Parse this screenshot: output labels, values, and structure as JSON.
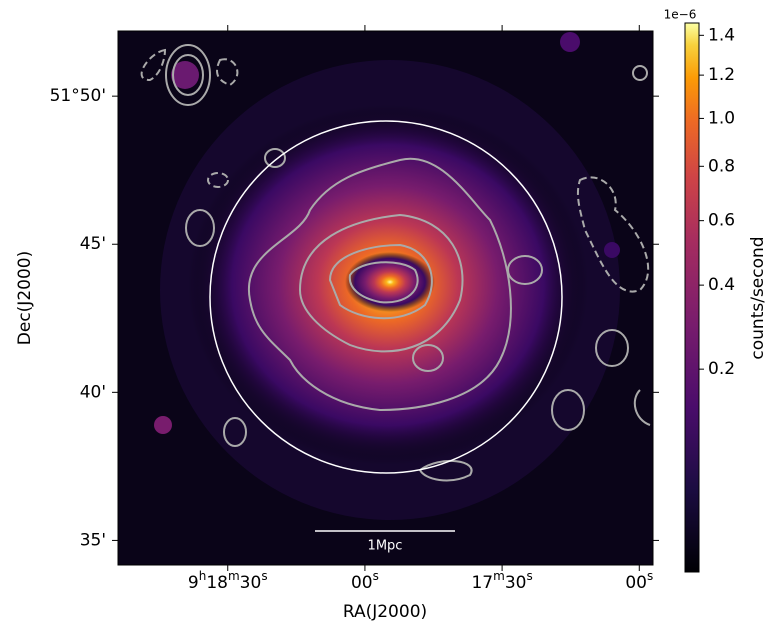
{
  "chart_data": {
    "type": "image",
    "xlabel": "RA(J2000)",
    "ylabel": "Dec(J2000)",
    "xlim": [
      33534,
      33417
    ],
    "xticks": [
      {
        "value": 33510,
        "label": "9h18m30s"
      },
      {
        "value": 33480,
        "label": "00s"
      },
      {
        "value": 33450,
        "label": "17m30s"
      },
      {
        "value": 33420,
        "label": "00s"
      }
    ],
    "ylim": [
      34.17,
      52.2
    ],
    "yticks": [
      {
        "value": 35,
        "label": "35'"
      },
      {
        "value": 40,
        "label": "40'"
      },
      {
        "value": 45,
        "label": "45'"
      },
      {
        "value": 50,
        "label": "51°50'"
      }
    ],
    "colorbar": {
      "label": "counts/second",
      "offset_label": "1e−6",
      "scale": "sqrt",
      "clim": [
        0,
        1.465
      ],
      "ticks": [
        0.2,
        0.4,
        0.6,
        0.8,
        {
          "value": 1.0,
          "label": "1.0"
        },
        1.2,
        1.4
      ]
    },
    "annotations": [
      "1Mpc"
    ]
  }
}
